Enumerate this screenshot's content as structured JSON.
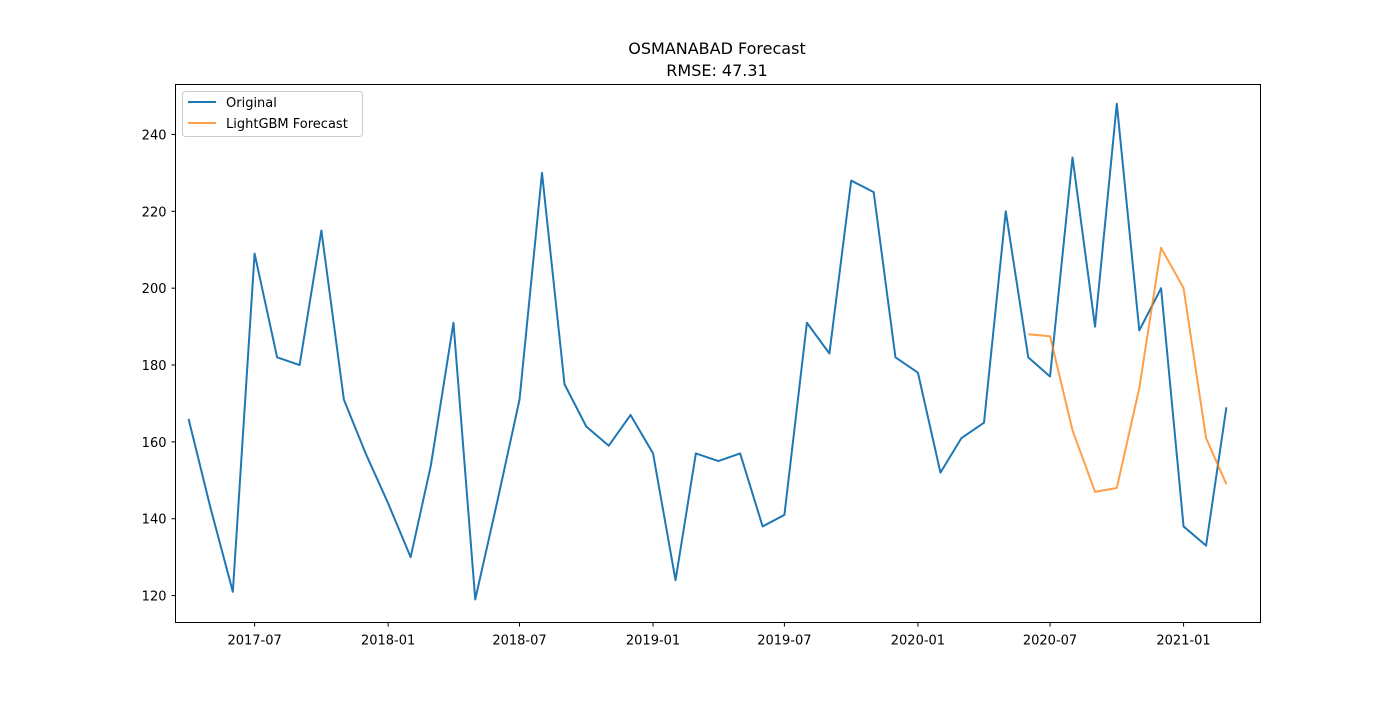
{
  "chart_data": {
    "type": "line",
    "title": "OSMANABAD Forecast",
    "subtitle": "RMSE: 47.31",
    "xlabel": "",
    "ylabel": "",
    "ylim": [
      113,
      253
    ],
    "xlim": [
      "2017-03-14",
      "2021-04-17"
    ],
    "grid": false,
    "legend_position": "top-left",
    "x_ticks": [
      "2017-07",
      "2018-01",
      "2018-07",
      "2019-01",
      "2019-07",
      "2020-01",
      "2020-07",
      "2021-01"
    ],
    "y_ticks": [
      120,
      140,
      160,
      180,
      200,
      220,
      240
    ],
    "series": [
      {
        "name": "Original",
        "color": "#1f77b4",
        "x": [
          "2017-04-01",
          "2017-05-01",
          "2017-06-01",
          "2017-07-01",
          "2017-08-01",
          "2017-09-01",
          "2017-10-01",
          "2017-11-01",
          "2017-12-01",
          "2018-01-01",
          "2018-02-01",
          "2018-03-01",
          "2018-04-01",
          "2018-05-01",
          "2018-06-01",
          "2018-07-01",
          "2018-08-01",
          "2018-09-01",
          "2018-10-01",
          "2018-11-01",
          "2018-12-01",
          "2019-01-01",
          "2019-02-01",
          "2019-03-01",
          "2019-04-01",
          "2019-05-01",
          "2019-06-01",
          "2019-07-01",
          "2019-08-01",
          "2019-09-01",
          "2019-10-01",
          "2019-11-01",
          "2019-12-01",
          "2020-01-01",
          "2020-02-01",
          "2020-03-01",
          "2020-04-01",
          "2020-05-01",
          "2020-06-01",
          "2020-07-01",
          "2020-08-01",
          "2020-09-01",
          "2020-10-01",
          "2020-11-01",
          "2020-12-01",
          "2021-01-01",
          "2021-02-01",
          "2021-03-01"
        ],
        "values": [
          166,
          143,
          121,
          209,
          182,
          180,
          215,
          171,
          157,
          144,
          130,
          154,
          191,
          119,
          145,
          171,
          230,
          175,
          164,
          159,
          167,
          157,
          124,
          157,
          155,
          157,
          138,
          141,
          191,
          183,
          228,
          225,
          182,
          178,
          152,
          161,
          165,
          220,
          182,
          177,
          234,
          190,
          248,
          189,
          200,
          138,
          133,
          169
        ]
      },
      {
        "name": "LightGBM Forecast",
        "color": "#ff7f0e",
        "x": [
          "2020-06-01",
          "2020-07-01",
          "2020-08-01",
          "2020-09-01",
          "2020-10-01",
          "2020-11-01",
          "2020-12-01",
          "2021-01-01",
          "2021-02-01",
          "2021-03-01"
        ],
        "values": [
          188,
          187.5,
          163,
          147,
          148,
          174,
          210.5,
          200,
          161,
          149
        ]
      }
    ]
  }
}
